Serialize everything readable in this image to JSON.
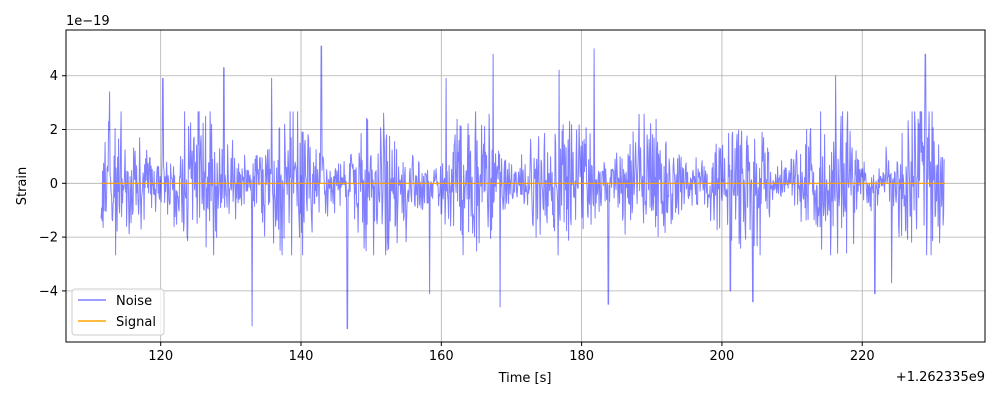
{
  "chart_data": {
    "type": "line",
    "xlabel": "Time [s]",
    "ylabel": "Strain",
    "x_offset_label": "+1.262335e9",
    "y_scale_label": "1e−19",
    "xlim": [
      106.5,
      237.5
    ],
    "ylim": [
      -5.9,
      5.7
    ],
    "xticks": [
      120,
      140,
      160,
      180,
      200,
      220
    ],
    "yticks": [
      -4,
      -2,
      0,
      2,
      4
    ],
    "xtick_labels": [
      "120",
      "140",
      "160",
      "180",
      "200",
      "220"
    ],
    "ytick_labels": [
      "−4",
      "−2",
      "0",
      "2",
      "4"
    ],
    "grid": true,
    "legend_position": "lower-left",
    "series": [
      {
        "name": "Noise",
        "color": "#0000ff",
        "opacity": 0.5,
        "x_range": [
          111.5,
          231.8
        ],
        "typical_envelope": [
          -2.2,
          2.2
        ],
        "spikes": [
          {
            "x": 112.7,
            "y": 3.4
          },
          {
            "x": 120.3,
            "y": 3.9
          },
          {
            "x": 129.0,
            "y": 4.3
          },
          {
            "x": 133.0,
            "y": -5.3
          },
          {
            "x": 135.8,
            "y": 3.9
          },
          {
            "x": 142.9,
            "y": 5.1
          },
          {
            "x": 146.6,
            "y": -5.4
          },
          {
            "x": 158.3,
            "y": -4.1
          },
          {
            "x": 160.7,
            "y": 3.9
          },
          {
            "x": 167.4,
            "y": 4.8
          },
          {
            "x": 168.4,
            "y": -4.6
          },
          {
            "x": 176.8,
            "y": 4.2
          },
          {
            "x": 181.8,
            "y": 5.0
          },
          {
            "x": 183.8,
            "y": -4.5
          },
          {
            "x": 201.2,
            "y": -4.0
          },
          {
            "x": 204.4,
            "y": -4.4
          },
          {
            "x": 216.2,
            "y": 4.0
          },
          {
            "x": 221.8,
            "y": -4.1
          },
          {
            "x": 229.0,
            "y": 4.8
          },
          {
            "x": 224.2,
            "y": -3.7
          }
        ]
      },
      {
        "name": "Signal",
        "color": "#ffa500",
        "x": [
          111.5,
          231.8
        ],
        "y": [
          0,
          0
        ]
      }
    ]
  }
}
